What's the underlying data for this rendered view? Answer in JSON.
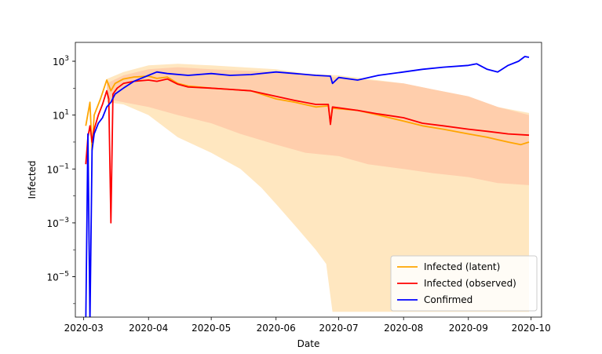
{
  "chart_data": {
    "type": "line",
    "title": "",
    "xlabel": "Date",
    "ylabel": "Infected",
    "yscale": "log",
    "ylim_exponent": [
      -6.5,
      3.7
    ],
    "xlim": [
      "2020-02-26",
      "2020-10-06"
    ],
    "grid": false,
    "legend_position": "lower-right",
    "x_ticks": [
      {
        "date": "2020-03-01",
        "label": "2020-03"
      },
      {
        "date": "2020-04-01",
        "label": "2020-04"
      },
      {
        "date": "2020-05-01",
        "label": "2020-05"
      },
      {
        "date": "2020-06-01",
        "label": "2020-06"
      },
      {
        "date": "2020-07-01",
        "label": "2020-07"
      },
      {
        "date": "2020-08-01",
        "label": "2020-08"
      },
      {
        "date": "2020-09-01",
        "label": "2020-09"
      },
      {
        "date": "2020-10-01",
        "label": "2020-10"
      }
    ],
    "y_ticks": [
      {
        "exp": -5,
        "label": "10",
        "sup": "−5"
      },
      {
        "exp": -3,
        "label": "10",
        "sup": "−3"
      },
      {
        "exp": -1,
        "label": "10",
        "sup": "−1"
      },
      {
        "exp": 1,
        "label": "10",
        "sup": "1"
      },
      {
        "exp": 3,
        "label": "10",
        "sup": "3"
      }
    ],
    "series": [
      {
        "name": "Infected (latent)",
        "color": "#ffa500",
        "band_color": "#ffe7c0",
        "points": [
          [
            "2020-03-02",
            4
          ],
          [
            "2020-03-04",
            30
          ],
          [
            "2020-03-05",
            0.5
          ],
          [
            "2020-03-06",
            10
          ],
          [
            "2020-03-09",
            40
          ],
          [
            "2020-03-12",
            200
          ],
          [
            "2020-03-14",
            80
          ],
          [
            "2020-03-16",
            150
          ],
          [
            "2020-03-20",
            220
          ],
          [
            "2020-03-25",
            260
          ],
          [
            "2020-04-01",
            280
          ],
          [
            "2020-04-05",
            230
          ],
          [
            "2020-04-10",
            260
          ],
          [
            "2020-04-15",
            150
          ],
          [
            "2020-04-20",
            120
          ],
          [
            "2020-05-01",
            100
          ],
          [
            "2020-05-10",
            90
          ],
          [
            "2020-05-20",
            80
          ],
          [
            "2020-06-01",
            40
          ],
          [
            "2020-06-10",
            30
          ],
          [
            "2020-06-20",
            20
          ],
          [
            "2020-06-26",
            22
          ],
          [
            "2020-06-27",
            5
          ],
          [
            "2020-06-28",
            18
          ],
          [
            "2020-07-10",
            15
          ],
          [
            "2020-07-20",
            10
          ],
          [
            "2020-08-01",
            6
          ],
          [
            "2020-08-10",
            4
          ],
          [
            "2020-08-20",
            3
          ],
          [
            "2020-09-01",
            2
          ],
          [
            "2020-09-10",
            1.5
          ],
          [
            "2020-09-20",
            1.0
          ],
          [
            "2020-09-26",
            0.8
          ],
          [
            "2020-09-30",
            1.0
          ]
        ],
        "band_upper": [
          [
            "2020-03-12",
            220
          ],
          [
            "2020-03-20",
            400
          ],
          [
            "2020-04-01",
            700
          ],
          [
            "2020-04-15",
            800
          ],
          [
            "2020-05-01",
            700
          ],
          [
            "2020-06-01",
            500
          ],
          [
            "2020-06-15",
            350
          ],
          [
            "2020-07-01",
            300
          ],
          [
            "2020-07-15",
            220
          ],
          [
            "2020-08-01",
            150
          ],
          [
            "2020-08-15",
            90
          ],
          [
            "2020-09-01",
            50
          ],
          [
            "2020-09-15",
            20
          ],
          [
            "2020-09-30",
            12
          ]
        ],
        "band_lower": [
          [
            "2020-03-12",
            30
          ],
          [
            "2020-03-20",
            25
          ],
          [
            "2020-04-01",
            10
          ],
          [
            "2020-04-15",
            1.5
          ],
          [
            "2020-05-01",
            0.4
          ],
          [
            "2020-05-15",
            0.1
          ],
          [
            "2020-05-25",
            0.02
          ],
          [
            "2020-06-01",
            0.005
          ],
          [
            "2020-06-10",
            0.0008
          ],
          [
            "2020-06-20",
            0.0001
          ],
          [
            "2020-06-25",
            3e-05
          ],
          [
            "2020-06-28",
            5e-07
          ],
          [
            "2020-09-30",
            5e-07
          ]
        ]
      },
      {
        "name": "Infected (observed)",
        "color": "#ff0000",
        "band_color": "#ffc9a8",
        "points": [
          [
            "2020-03-02",
            0.15
          ],
          [
            "2020-03-03",
            1.5
          ],
          [
            "2020-03-04",
            4
          ],
          [
            "2020-03-05",
            1.0
          ],
          [
            "2020-03-06",
            3
          ],
          [
            "2020-03-08",
            10
          ],
          [
            "2020-03-10",
            25
          ],
          [
            "2020-03-12",
            80
          ],
          [
            "2020-03-13",
            40
          ],
          [
            "2020-03-14",
            0.001
          ],
          [
            "2020-03-15",
            60
          ],
          [
            "2020-03-17",
            100
          ],
          [
            "2020-03-20",
            150
          ],
          [
            "2020-03-25",
            180
          ],
          [
            "2020-04-01",
            200
          ],
          [
            "2020-04-05",
            180
          ],
          [
            "2020-04-10",
            220
          ],
          [
            "2020-04-15",
            140
          ],
          [
            "2020-04-20",
            110
          ],
          [
            "2020-05-01",
            100
          ],
          [
            "2020-05-10",
            90
          ],
          [
            "2020-05-20",
            80
          ],
          [
            "2020-06-01",
            50
          ],
          [
            "2020-06-10",
            35
          ],
          [
            "2020-06-20",
            25
          ],
          [
            "2020-06-26",
            25
          ],
          [
            "2020-06-27",
            4.5
          ],
          [
            "2020-06-28",
            20
          ],
          [
            "2020-07-10",
            15
          ],
          [
            "2020-07-20",
            11
          ],
          [
            "2020-08-01",
            8
          ],
          [
            "2020-08-10",
            5
          ],
          [
            "2020-08-20",
            4
          ],
          [
            "2020-09-01",
            3
          ],
          [
            "2020-09-10",
            2.5
          ],
          [
            "2020-09-20",
            2
          ],
          [
            "2020-09-30",
            1.8
          ]
        ],
        "band_upper": [
          [
            "2020-03-12",
            150
          ],
          [
            "2020-03-20",
            300
          ],
          [
            "2020-04-01",
            500
          ],
          [
            "2020-04-15",
            600
          ],
          [
            "2020-05-01",
            500
          ],
          [
            "2020-06-01",
            400
          ],
          [
            "2020-06-15",
            300
          ],
          [
            "2020-07-01",
            250
          ],
          [
            "2020-07-15",
            200
          ],
          [
            "2020-08-01",
            150
          ],
          [
            "2020-08-15",
            90
          ],
          [
            "2020-09-01",
            50
          ],
          [
            "2020-09-15",
            20
          ],
          [
            "2020-09-30",
            10
          ]
        ],
        "band_lower": [
          [
            "2020-03-12",
            40
          ],
          [
            "2020-03-20",
            30
          ],
          [
            "2020-04-01",
            20
          ],
          [
            "2020-04-15",
            10
          ],
          [
            "2020-05-01",
            5
          ],
          [
            "2020-05-15",
            2
          ],
          [
            "2020-06-01",
            0.8
          ],
          [
            "2020-06-15",
            0.4
          ],
          [
            "2020-07-01",
            0.3
          ],
          [
            "2020-07-15",
            0.15
          ],
          [
            "2020-08-01",
            0.1
          ],
          [
            "2020-08-15",
            0.07
          ],
          [
            "2020-09-01",
            0.05
          ],
          [
            "2020-09-15",
            0.03
          ],
          [
            "2020-09-30",
            0.025
          ]
        ]
      },
      {
        "name": "Confirmed",
        "color": "#0000ff",
        "points": [
          [
            "2020-03-02",
            2e-07
          ],
          [
            "2020-03-03",
            2
          ],
          [
            "2020-03-04",
            2e-07
          ],
          [
            "2020-03-05",
            0.5
          ],
          [
            "2020-03-06",
            2
          ],
          [
            "2020-03-08",
            5
          ],
          [
            "2020-03-10",
            8
          ],
          [
            "2020-03-12",
            20
          ],
          [
            "2020-03-14",
            30
          ],
          [
            "2020-03-16",
            60
          ],
          [
            "2020-03-20",
            100
          ],
          [
            "2020-03-25",
            180
          ],
          [
            "2020-04-01",
            300
          ],
          [
            "2020-04-05",
            400
          ],
          [
            "2020-04-10",
            350
          ],
          [
            "2020-04-20",
            300
          ],
          [
            "2020-05-01",
            350
          ],
          [
            "2020-05-10",
            300
          ],
          [
            "2020-05-20",
            320
          ],
          [
            "2020-06-01",
            400
          ],
          [
            "2020-06-10",
            350
          ],
          [
            "2020-06-20",
            300
          ],
          [
            "2020-06-27",
            280
          ],
          [
            "2020-06-28",
            150
          ],
          [
            "2020-07-01",
            250
          ],
          [
            "2020-07-10",
            200
          ],
          [
            "2020-07-20",
            300
          ],
          [
            "2020-08-01",
            400
          ],
          [
            "2020-08-10",
            500
          ],
          [
            "2020-08-20",
            600
          ],
          [
            "2020-09-01",
            700
          ],
          [
            "2020-09-05",
            800
          ],
          [
            "2020-09-10",
            500
          ],
          [
            "2020-09-15",
            400
          ],
          [
            "2020-09-20",
            700
          ],
          [
            "2020-09-25",
            1000
          ],
          [
            "2020-09-28",
            1500
          ],
          [
            "2020-09-30",
            1400
          ]
        ]
      }
    ]
  }
}
